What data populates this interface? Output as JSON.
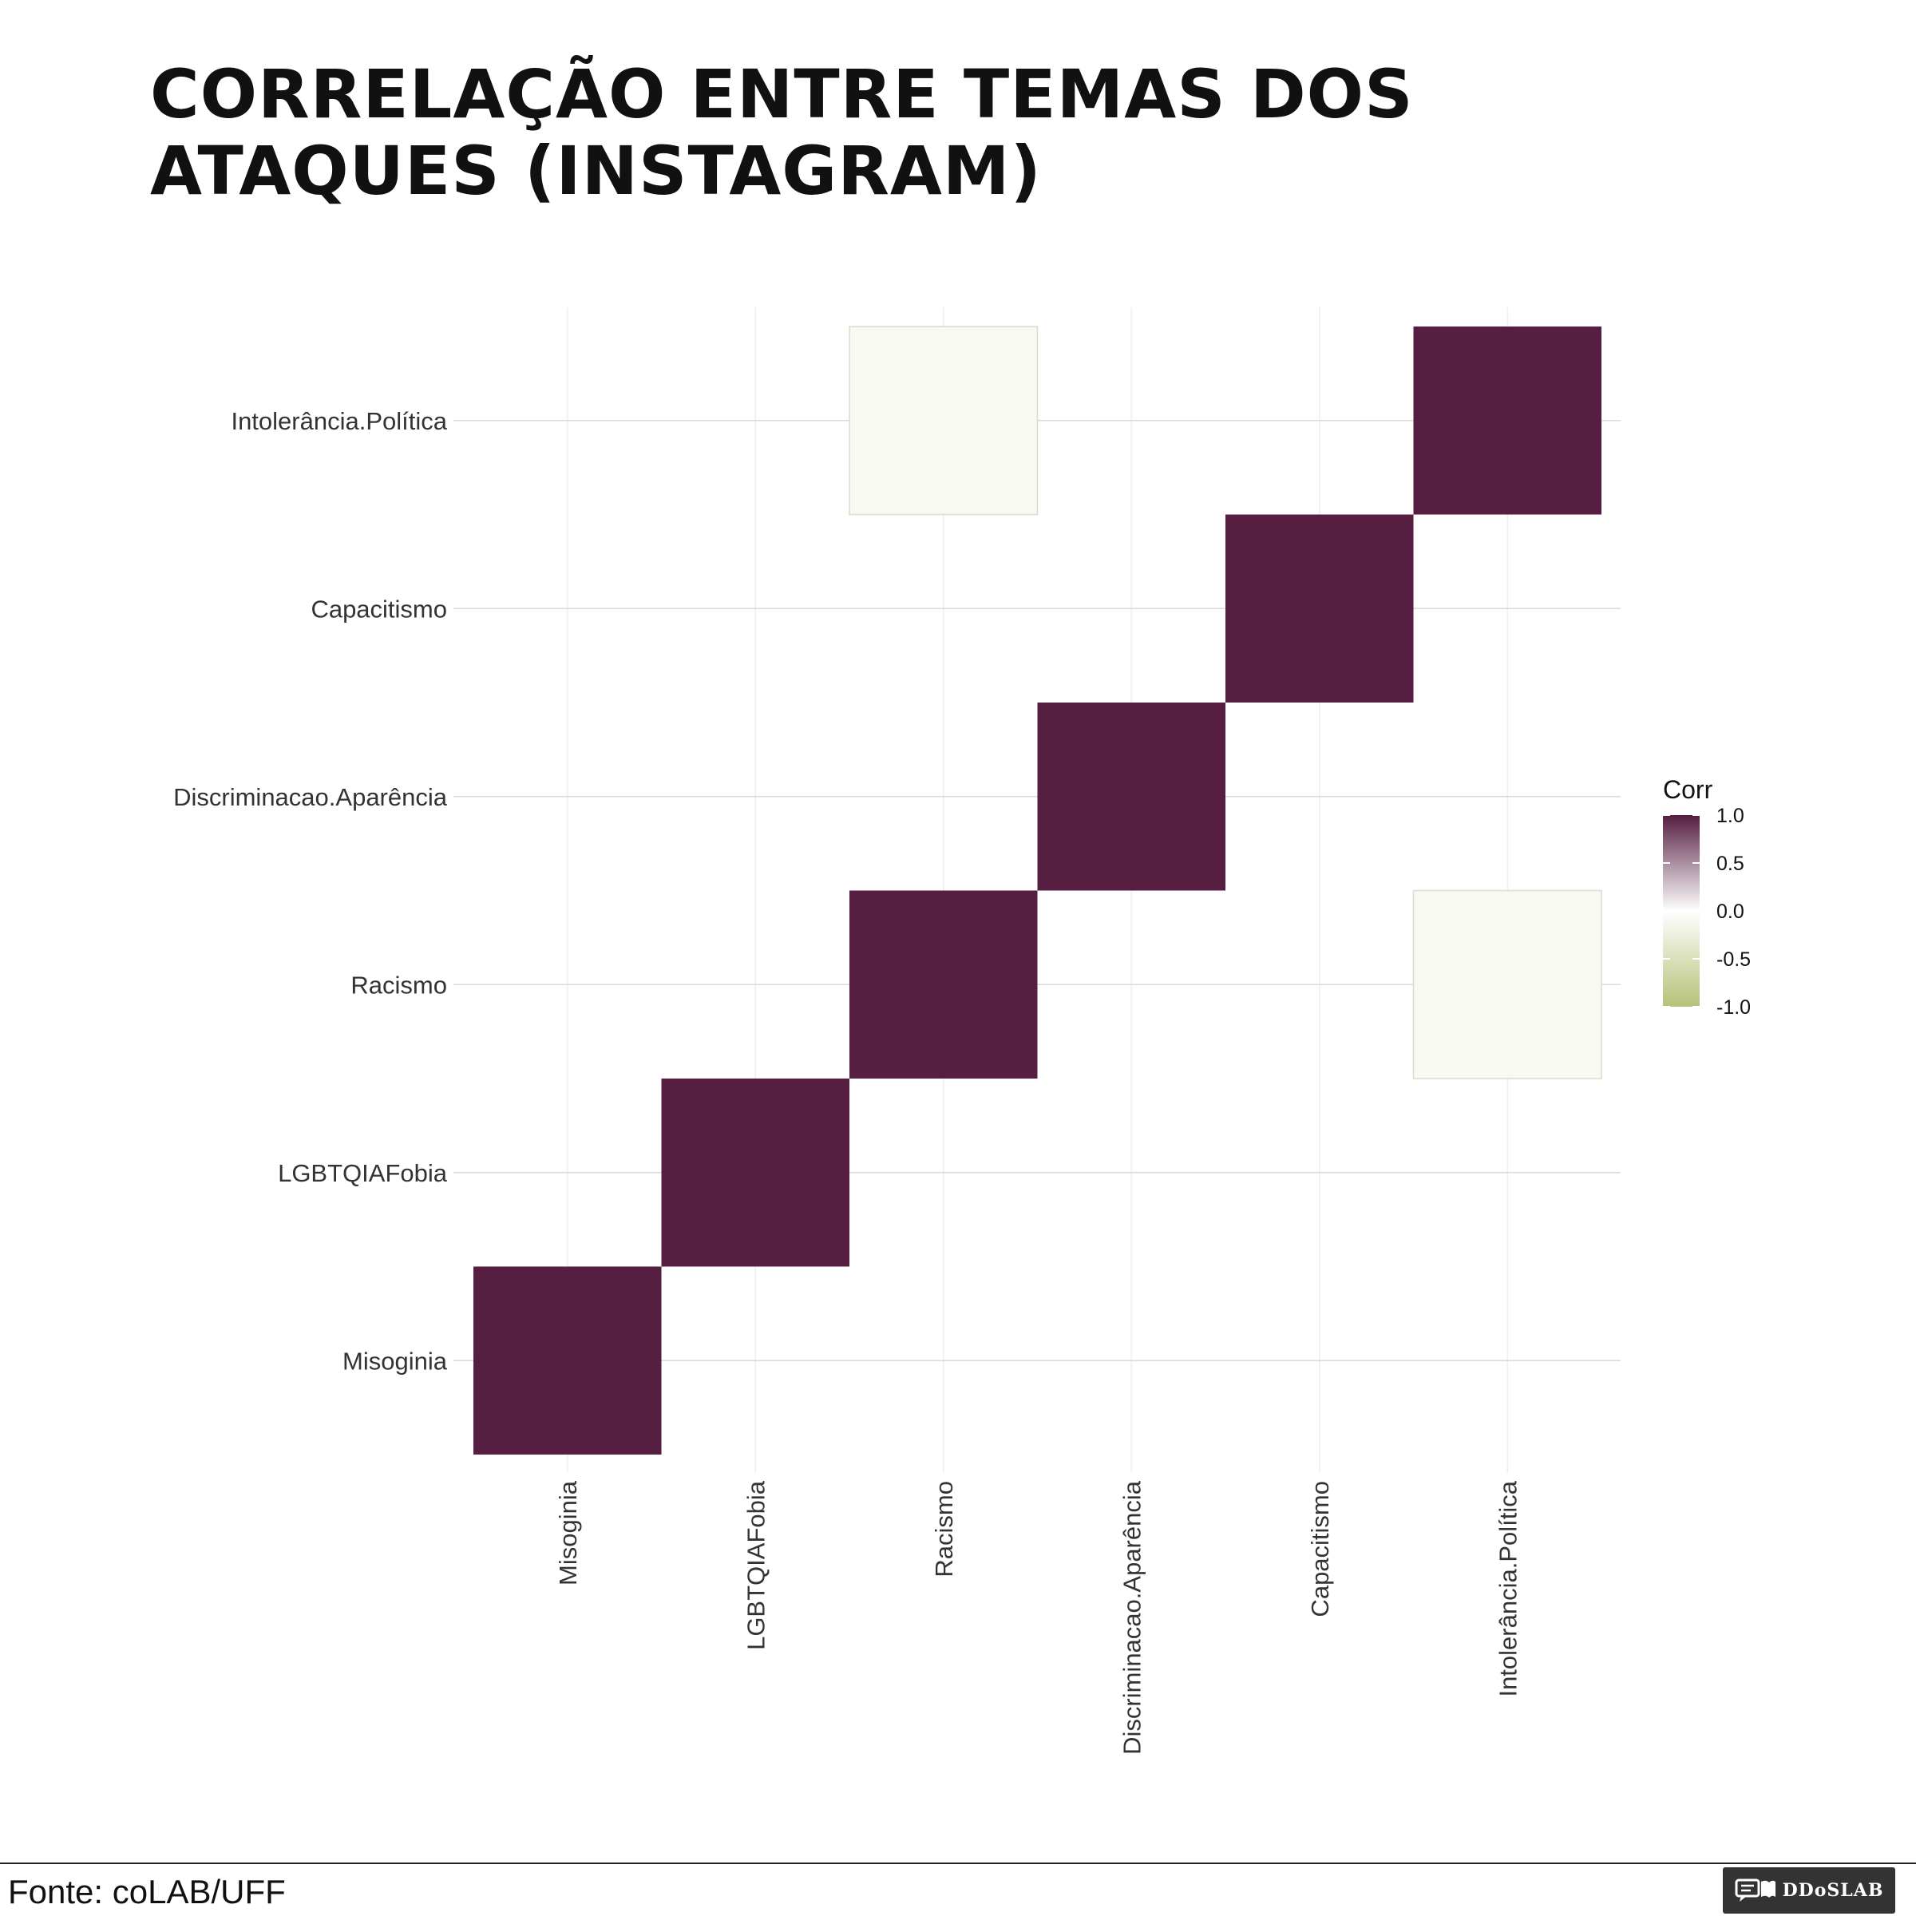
{
  "chart_data": {
    "type": "heatmap",
    "title": "Correlação entre temas dos ataques (Instagram)",
    "x_categories": [
      "Misoginia",
      "LGBTQIAFobia",
      "Racismo",
      "Discriminacao.Aparência",
      "Capacitismo",
      "Intolerância.Política"
    ],
    "y_categories": [
      "Misoginia",
      "LGBTQIAFobia",
      "Racismo",
      "Discriminacao.Aparência",
      "Capacitismo",
      "Intolerância.Política"
    ],
    "cells": [
      {
        "x": "Misoginia",
        "y": "Misoginia",
        "value": 1.0
      },
      {
        "x": "LGBTQIAFobia",
        "y": "LGBTQIAFobia",
        "value": 1.0
      },
      {
        "x": "Racismo",
        "y": "Racismo",
        "value": 1.0
      },
      {
        "x": "Discriminacao.Aparência",
        "y": "Discriminacao.Aparência",
        "value": 1.0
      },
      {
        "x": "Capacitismo",
        "y": "Capacitismo",
        "value": 1.0
      },
      {
        "x": "Intolerância.Política",
        "y": "Intolerância.Política",
        "value": 1.0
      },
      {
        "x": "Racismo",
        "y": "Intolerância.Política",
        "value": -0.1
      },
      {
        "x": "Intolerância.Política",
        "y": "Racismo",
        "value": -0.1
      }
    ],
    "legend": {
      "title": "Corr",
      "ticks": [
        "1.0",
        "0.5",
        "0.0",
        "-0.5",
        "-1.0"
      ],
      "range": [
        -1.0,
        1.0
      ],
      "position": "right"
    },
    "colors": {
      "high": "#561e40",
      "mid": "#ffffff",
      "low": "#b5c279",
      "grid_major": "#d9d9d9",
      "grid_minor": "#eeeeee"
    },
    "grid": true
  },
  "footer": {
    "source": "Fonte: coLAB/UFF",
    "logo_text": "DDoSLAB"
  }
}
